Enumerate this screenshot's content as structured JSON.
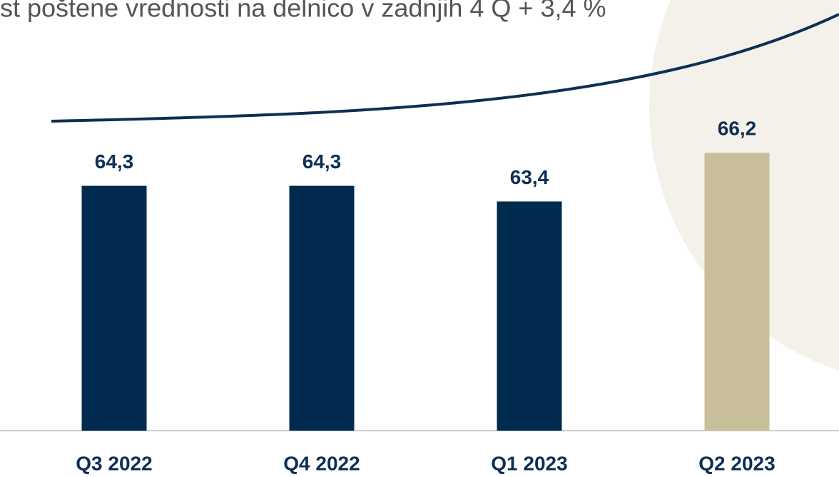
{
  "chart_data": {
    "type": "bar",
    "title": "st poštene vrednosti na delnico v zadnjih 4 Q + 3,4 %",
    "categories": [
      "Q3 2022",
      "Q4 2022",
      "Q1 2023",
      "Q2 2023"
    ],
    "values": [
      64.3,
      64.3,
      63.4,
      66.2
    ],
    "value_labels": [
      "64,3",
      "64,3",
      "63,4",
      "66,2"
    ],
    "colors": [
      "#002b4e",
      "#002b4e",
      "#002b4e",
      "#c8bf9a"
    ],
    "ylim": [
      50.2,
      75
    ]
  }
}
